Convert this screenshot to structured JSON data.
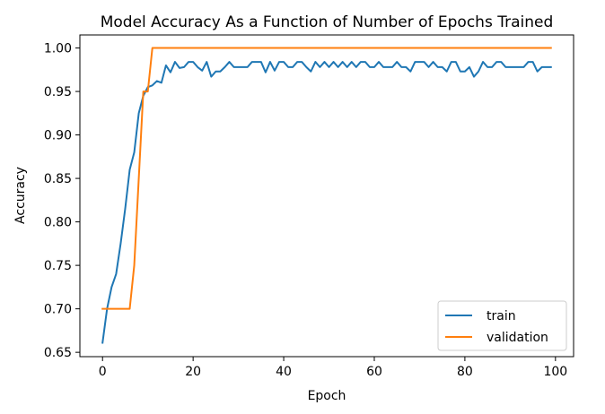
{
  "chart_data": {
    "type": "line",
    "title": "Model Accuracy As a Function of Number of Epochs Trained",
    "xlabel": "Epoch",
    "ylabel": "Accuracy",
    "xlim": [
      -5,
      104
    ],
    "ylim": [
      0.645,
      1.015
    ],
    "xticks": [
      0,
      20,
      40,
      60,
      80,
      100
    ],
    "yticks": [
      0.65,
      0.7,
      0.75,
      0.8,
      0.85,
      0.9,
      0.95,
      1.0
    ],
    "ytick_labels": [
      "0.65",
      "0.70",
      "0.75",
      "0.80",
      "0.85",
      "0.90",
      "0.95",
      "1.00"
    ],
    "grid": false,
    "legend_position": "bottom-right",
    "series": [
      {
        "name": "train",
        "color": "#1f77b4",
        "x": [
          0,
          1,
          2,
          3,
          4,
          5,
          6,
          7,
          8,
          9,
          10,
          11,
          12,
          13,
          14,
          15,
          16,
          17,
          18,
          19,
          20,
          21,
          22,
          23,
          24,
          25,
          26,
          27,
          28,
          29,
          30,
          31,
          32,
          33,
          34,
          35,
          36,
          37,
          38,
          39,
          40,
          41,
          42,
          43,
          44,
          45,
          46,
          47,
          48,
          49,
          50,
          51,
          52,
          53,
          54,
          55,
          56,
          57,
          58,
          59,
          60,
          61,
          62,
          63,
          64,
          65,
          66,
          67,
          68,
          69,
          70,
          71,
          72,
          73,
          74,
          75,
          76,
          77,
          78,
          79,
          80,
          81,
          82,
          83,
          84,
          85,
          86,
          87,
          88,
          89,
          90,
          91,
          92,
          93,
          94,
          95,
          96,
          97,
          98,
          99
        ],
        "values": [
          0.661,
          0.7,
          0.725,
          0.74,
          0.775,
          0.815,
          0.86,
          0.88,
          0.925,
          0.945,
          0.955,
          0.957,
          0.962,
          0.96,
          0.98,
          0.972,
          0.984,
          0.977,
          0.978,
          0.984,
          0.984,
          0.978,
          0.974,
          0.984,
          0.967,
          0.973,
          0.973,
          0.978,
          0.984,
          0.978,
          0.978,
          0.978,
          0.978,
          0.984,
          0.984,
          0.984,
          0.972,
          0.984,
          0.974,
          0.984,
          0.984,
          0.978,
          0.978,
          0.984,
          0.984,
          0.978,
          0.973,
          0.984,
          0.978,
          0.984,
          0.978,
          0.984,
          0.978,
          0.984,
          0.978,
          0.984,
          0.978,
          0.984,
          0.984,
          0.978,
          0.978,
          0.984,
          0.978,
          0.978,
          0.978,
          0.984,
          0.978,
          0.978,
          0.973,
          0.984,
          0.984,
          0.984,
          0.978,
          0.984,
          0.978,
          0.978,
          0.973,
          0.984,
          0.984,
          0.973,
          0.973,
          0.978,
          0.967,
          0.973,
          0.984,
          0.978,
          0.978,
          0.984,
          0.984,
          0.978,
          0.978,
          0.978,
          0.978,
          0.978,
          0.984,
          0.984,
          0.973,
          0.978,
          0.978,
          0.978
        ]
      },
      {
        "name": "validation",
        "color": "#ff7f0e",
        "x": [
          0,
          1,
          2,
          3,
          4,
          5,
          6,
          7,
          8,
          9,
          10,
          11,
          12,
          13,
          14,
          15,
          16,
          17,
          18,
          19,
          20,
          21,
          22,
          23,
          24,
          25,
          26,
          27,
          28,
          29,
          30,
          31,
          32,
          33,
          34,
          35,
          36,
          37,
          38,
          39,
          40,
          41,
          42,
          43,
          44,
          45,
          46,
          47,
          48,
          49,
          50,
          51,
          52,
          53,
          54,
          55,
          56,
          57,
          58,
          59,
          60,
          61,
          62,
          63,
          64,
          65,
          66,
          67,
          68,
          69,
          70,
          71,
          72,
          73,
          74,
          75,
          76,
          77,
          78,
          79,
          80,
          81,
          82,
          83,
          84,
          85,
          86,
          87,
          88,
          89,
          90,
          91,
          92,
          93,
          94,
          95,
          96,
          97,
          98,
          99
        ],
        "values": [
          0.7,
          0.7,
          0.7,
          0.7,
          0.7,
          0.7,
          0.7,
          0.75,
          0.85,
          0.95,
          0.95,
          1.0,
          1.0,
          1.0,
          1.0,
          1.0,
          1.0,
          1.0,
          1.0,
          1.0,
          1.0,
          1.0,
          1.0,
          1.0,
          1.0,
          1.0,
          1.0,
          1.0,
          1.0,
          1.0,
          1.0,
          1.0,
          1.0,
          1.0,
          1.0,
          1.0,
          1.0,
          1.0,
          1.0,
          1.0,
          1.0,
          1.0,
          1.0,
          1.0,
          1.0,
          1.0,
          1.0,
          1.0,
          1.0,
          1.0,
          1.0,
          1.0,
          1.0,
          1.0,
          1.0,
          1.0,
          1.0,
          1.0,
          1.0,
          1.0,
          1.0,
          1.0,
          1.0,
          1.0,
          1.0,
          1.0,
          1.0,
          1.0,
          1.0,
          1.0,
          1.0,
          1.0,
          1.0,
          1.0,
          1.0,
          1.0,
          1.0,
          1.0,
          1.0,
          1.0,
          1.0,
          1.0,
          1.0,
          1.0,
          1.0,
          1.0,
          1.0,
          1.0,
          1.0,
          1.0,
          1.0,
          1.0,
          1.0,
          1.0,
          1.0,
          1.0,
          1.0,
          1.0,
          1.0,
          1.0
        ]
      }
    ]
  }
}
